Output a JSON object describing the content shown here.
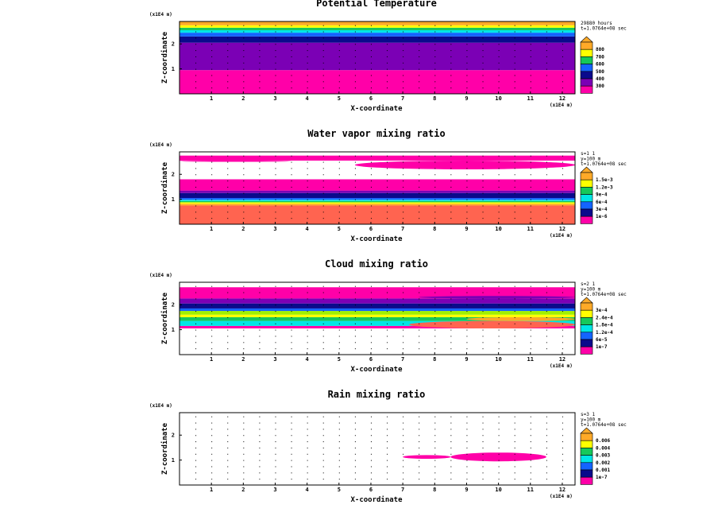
{
  "colors": {
    "magenta": "#ff00a8",
    "purple": "#7b00b5",
    "navy": "#0a0a8c",
    "blue": "#1464ff",
    "cyan": "#00e6e6",
    "green": "#16c85a",
    "lime": "#a0f000",
    "yellow": "#ffff00",
    "orange": "#ffaa28",
    "salmon": "#ff6450"
  },
  "chart_data": [
    {
      "type": "heatmap",
      "title": "Potential Temperature",
      "xlabel": "X-coordinate",
      "ylabel": "Z-coordinate",
      "x_unit": "(x1E4 m)",
      "z_unit": "(x1E4 m)",
      "xlim": [
        0,
        12.4
      ],
      "zlim": [
        0,
        2.9
      ],
      "xticks": [
        "1",
        "2",
        "3",
        "4",
        "5",
        "6",
        "7",
        "8",
        "9",
        "10",
        "11",
        "12"
      ],
      "zticks": [
        "1",
        "2"
      ],
      "info_lines": [
        "29880 hours",
        "t=1.0764e+08 sec"
      ],
      "legend_levels": [
        "800",
        "700",
        "600",
        "500",
        "400",
        "300"
      ],
      "legend_colors": [
        "#ffaa28",
        "#ffff00",
        "#16c85a",
        "#1464ff",
        "#0a0a8c",
        "#7b00b5",
        "#ff00a8"
      ],
      "layers": [
        {
          "z0": 0.0,
          "z1": 0.95,
          "color": "magenta"
        },
        {
          "z0": 0.95,
          "z1": 2.05,
          "color": "purple"
        },
        {
          "z0": 2.05,
          "z1": 2.3,
          "color": "navy"
        },
        {
          "z0": 2.3,
          "z1": 2.45,
          "color": "blue"
        },
        {
          "z0": 2.45,
          "z1": 2.55,
          "color": "cyan"
        },
        {
          "z0": 2.55,
          "z1": 2.65,
          "color": "green"
        },
        {
          "z0": 2.65,
          "z1": 2.75,
          "color": "yellow"
        },
        {
          "z0": 2.75,
          "z1": 2.9,
          "color": "orange"
        }
      ],
      "blobs": []
    },
    {
      "type": "heatmap",
      "title": "Water vapor mixing ratio",
      "xlabel": "X-coordinate",
      "ylabel": "Z-coordinate",
      "x_unit": "(x1E4 m)",
      "z_unit": "(x1E4 m)",
      "xlim": [
        0,
        12.4
      ],
      "zlim": [
        0,
        2.9
      ],
      "xticks": [
        "1",
        "2",
        "3",
        "4",
        "5",
        "6",
        "7",
        "8",
        "9",
        "10",
        "11",
        "12"
      ],
      "zticks": [
        "1",
        "2"
      ],
      "info_lines": [
        "s=1 1",
        "y=100 m",
        "t=1.0764e+08 sec"
      ],
      "legend_levels": [
        "1.5e-3",
        "1.2e-3",
        "9e-4",
        "6e-4",
        "3e-4",
        "1e-6"
      ],
      "legend_colors": [
        "#ffaa28",
        "#ffff00",
        "#16c85a",
        "#00e6e6",
        "#1464ff",
        "#0a0a8c",
        "#ff00a8"
      ],
      "layers": [
        {
          "z0": 0.0,
          "z1": 0.75,
          "color": "salmon"
        },
        {
          "z0": 0.75,
          "z1": 0.82,
          "color": "orange"
        },
        {
          "z0": 0.82,
          "z1": 0.88,
          "color": "yellow"
        },
        {
          "z0": 0.88,
          "z1": 0.93,
          "color": "green"
        },
        {
          "z0": 0.93,
          "z1": 0.98,
          "color": "cyan"
        },
        {
          "z0": 0.98,
          "z1": 1.05,
          "color": "blue"
        },
        {
          "z0": 1.05,
          "z1": 1.25,
          "color": "navy"
        },
        {
          "z0": 1.25,
          "z1": 1.35,
          "color": "purple"
        },
        {
          "z0": 1.35,
          "z1": 1.8,
          "color": "magenta"
        },
        {
          "z0": 2.55,
          "z1": 2.75,
          "color": "magenta"
        }
      ],
      "blobs": [
        {
          "x0": 5.5,
          "x1": 12.4,
          "z0": 2.2,
          "z1": 2.55,
          "color": "magenta"
        },
        {
          "x0": 0.0,
          "x1": 3.5,
          "z0": 2.5,
          "z1": 2.55,
          "color": "magenta"
        }
      ]
    },
    {
      "type": "heatmap",
      "title": "Cloud mixing ratio",
      "xlabel": "X-coordinate",
      "ylabel": "Z-coordinate",
      "x_unit": "(x1E4 m)",
      "z_unit": "(x1E4 m)",
      "xlim": [
        0,
        12.4
      ],
      "zlim": [
        0,
        2.9
      ],
      "xticks": [
        "1",
        "2",
        "3",
        "4",
        "5",
        "6",
        "7",
        "8",
        "9",
        "10",
        "11",
        "12"
      ],
      "zticks": [
        "1",
        "2"
      ],
      "info_lines": [
        "s=2 1",
        "y=100 m",
        "t=1.0764e+08 sec"
      ],
      "legend_levels": [
        "3e-4",
        "2.4e-4",
        "1.8e-4",
        "1.2e-4",
        "6e-5",
        "1e-7"
      ],
      "legend_colors": [
        "#ffaa28",
        "#ffff00",
        "#16c85a",
        "#00e6e6",
        "#1464ff",
        "#0a0a8c",
        "#ff00a8"
      ],
      "layers": [
        {
          "z0": 1.05,
          "z1": 1.15,
          "color": "magenta"
        },
        {
          "z0": 1.15,
          "z1": 1.35,
          "color": "cyan"
        },
        {
          "z0": 1.35,
          "z1": 1.5,
          "color": "green"
        },
        {
          "z0": 1.5,
          "z1": 1.6,
          "color": "yellow"
        },
        {
          "z0": 1.6,
          "z1": 1.75,
          "color": "lime"
        },
        {
          "z0": 1.75,
          "z1": 1.85,
          "color": "blue"
        },
        {
          "z0": 1.85,
          "z1": 2.05,
          "color": "navy"
        },
        {
          "z0": 2.05,
          "z1": 2.25,
          "color": "purple"
        },
        {
          "z0": 2.25,
          "z1": 2.7,
          "color": "magenta"
        }
      ],
      "blobs": [
        {
          "x0": 7.2,
          "x1": 12.4,
          "z0": 1.05,
          "z1": 1.35,
          "color": "salmon"
        },
        {
          "x0": 9.0,
          "x1": 12.4,
          "z0": 1.35,
          "z1": 1.5,
          "color": "orange"
        },
        {
          "x0": 7.5,
          "x1": 12.4,
          "z0": 2.25,
          "z1": 2.35,
          "color": "purple"
        }
      ]
    },
    {
      "type": "heatmap",
      "title": "Rain mixing ratio",
      "xlabel": "X-coordinate",
      "ylabel": "Z-coordinate",
      "x_unit": "(x1E4 m)",
      "z_unit": "(x1E4 m)",
      "xlim": [
        0,
        12.4
      ],
      "zlim": [
        0,
        2.9
      ],
      "xticks": [
        "1",
        "2",
        "3",
        "4",
        "5",
        "6",
        "7",
        "8",
        "9",
        "10",
        "11",
        "12"
      ],
      "zticks": [
        "1",
        "2"
      ],
      "info_lines": [
        "s=3 1",
        "y=100 m",
        "t=1.0764e+08 sec"
      ],
      "legend_levels": [
        "0.006",
        "0.004",
        "0.003",
        "0.002",
        "0.001",
        "1e-7"
      ],
      "legend_colors": [
        "#ffaa28",
        "#ffff00",
        "#16c85a",
        "#00e6e6",
        "#1464ff",
        "#0a0a8c",
        "#ff00a8"
      ],
      "layers": [],
      "blobs": [
        {
          "x0": 7.0,
          "x1": 8.5,
          "z0": 1.05,
          "z1": 1.2,
          "color": "magenta"
        },
        {
          "x0": 8.5,
          "x1": 11.5,
          "z0": 0.95,
          "z1": 1.3,
          "color": "magenta"
        }
      ]
    }
  ]
}
